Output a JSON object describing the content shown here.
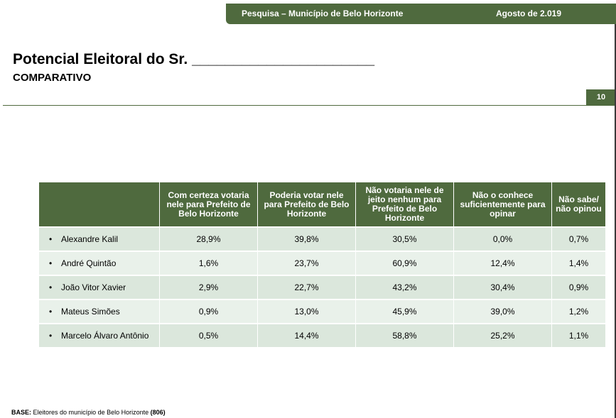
{
  "header": {
    "survey": "Pesquisa – Município de Belo Horizonte",
    "date": "Agosto de 2.019"
  },
  "title": "Potencial Eleitoral do Sr. ______________________",
  "subtitle": "COMPARATIVO",
  "page_number": "10",
  "table": {
    "columns": [
      "Com certeza votaria nele para Prefeito de Belo Horizonte",
      "Poderia votar nele para Prefeito de Belo Horizonte",
      "Não votaria nele de jeito nenhum para Prefeito de Belo Horizonte",
      "Não o conhece suficientemente para opinar",
      "Não sabe/ não opinou"
    ],
    "rows": [
      {
        "name": "Alexandre Kalil",
        "values": [
          "28,9%",
          "39,8%",
          "30,5%",
          "0,0%",
          "0,7%"
        ]
      },
      {
        "name": "André Quintão",
        "values": [
          "1,6%",
          "23,7%",
          "60,9%",
          "12,4%",
          "1,4%"
        ]
      },
      {
        "name": "João Vitor Xavier",
        "values": [
          "2,9%",
          "22,7%",
          "43,2%",
          "30,4%",
          "0,9%"
        ]
      },
      {
        "name": "Mateus Simões",
        "values": [
          "0,9%",
          "13,0%",
          "45,9%",
          "39,0%",
          "1,2%"
        ]
      },
      {
        "name": "Marcelo Álvaro Antônio",
        "values": [
          "0,5%",
          "14,4%",
          "58,8%",
          "25,2%",
          "1,1%"
        ]
      }
    ]
  },
  "footer": {
    "base_label": "BASE:",
    "base_text": "Eleitores do município de Belo Horizonte",
    "base_count": "(806)"
  }
}
